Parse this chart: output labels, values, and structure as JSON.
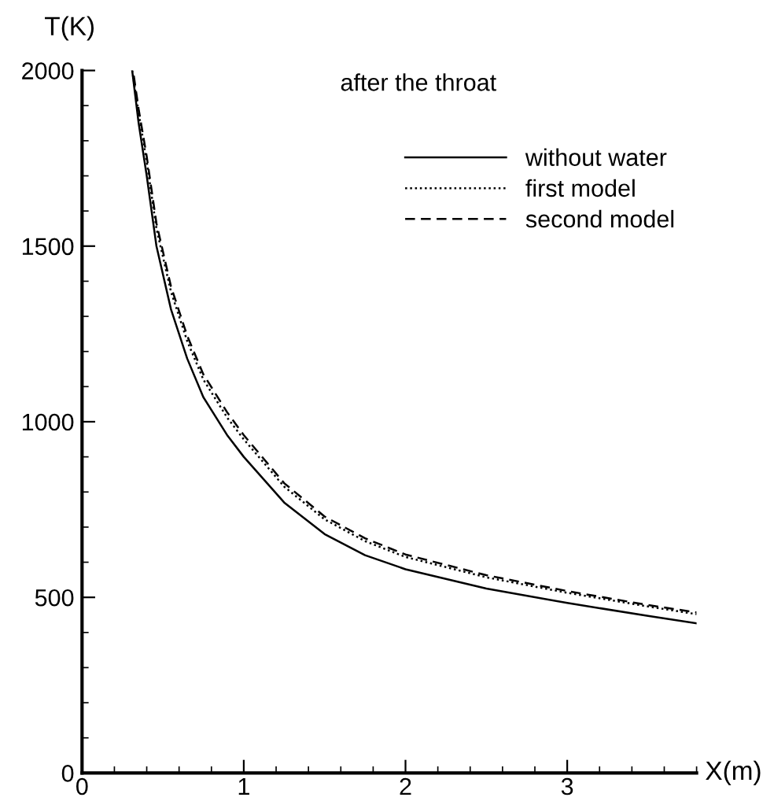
{
  "chart_data": {
    "type": "line",
    "xlabel": "X(m)",
    "ylabel": "T(K)",
    "annotations": [
      "after the throat"
    ],
    "xlim": [
      0,
      3.8
    ],
    "ylim": [
      0,
      2000
    ],
    "xticks": [
      0,
      1,
      2,
      3
    ],
    "yticks": [
      0,
      500,
      1000,
      1500,
      2000
    ],
    "grid": false,
    "legend": "top right",
    "marker": "none",
    "x": [
      0.31,
      0.35,
      0.4,
      0.46,
      0.55,
      0.65,
      0.75,
      0.9,
      1.0,
      1.25,
      1.5,
      1.75,
      2.0,
      2.5,
      3.0,
      3.5,
      3.8
    ],
    "series": [
      {
        "name": "without water",
        "color": "#000000",
        "line_style": "solid",
        "values": [
          2000,
          1850,
          1700,
          1500,
          1320,
          1180,
          1070,
          960,
          900,
          770,
          680,
          620,
          580,
          525,
          484,
          447,
          426
        ]
      },
      {
        "name": "first model",
        "color": "#000000",
        "line_style": "dotted",
        "values": [
          2000,
          1880,
          1740,
          1550,
          1370,
          1230,
          1120,
          1010,
          950,
          815,
          722,
          660,
          615,
          557,
          513,
          474,
          452
        ]
      },
      {
        "name": "second model",
        "color": "#000000",
        "line_style": "dashed",
        "x": [
          0.32,
          0.35,
          0.4,
          0.46,
          0.55,
          0.65,
          0.75,
          0.9,
          1.0,
          1.25,
          1.5,
          1.75,
          2.0,
          2.5,
          3.0,
          3.5,
          3.8
        ],
        "values": [
          1985,
          1890,
          1755,
          1565,
          1385,
          1245,
          1135,
          1025,
          962,
          825,
          730,
          668,
          622,
          563,
          518,
          478,
          457
        ]
      }
    ]
  }
}
